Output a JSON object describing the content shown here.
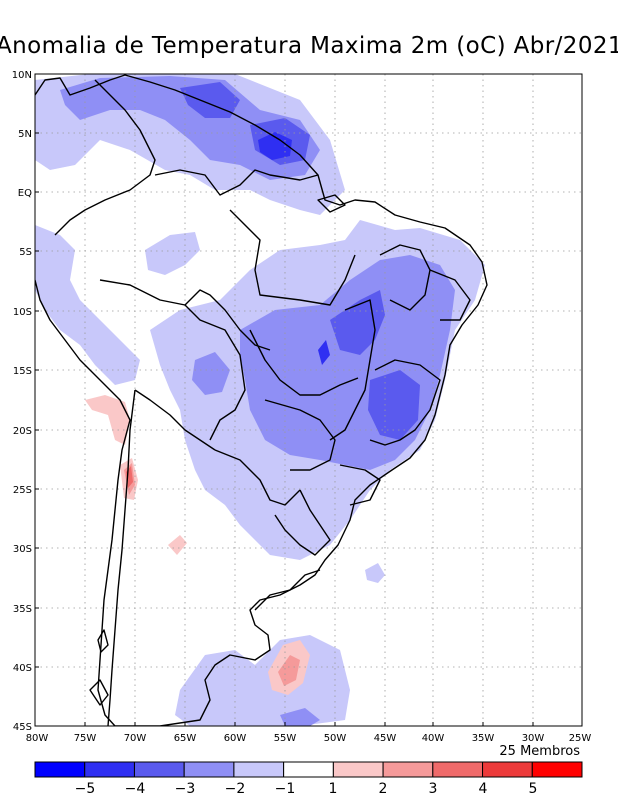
{
  "title": "Anomalia de Temperatura Maxima 2m (oC) Abr/2021",
  "members_label": "25 Membros",
  "lat_ticks": [
    "10N",
    "5N",
    "EQ",
    "5S",
    "10S",
    "15S",
    "20S",
    "25S",
    "30S",
    "35S",
    "40S",
    "45S"
  ],
  "lon_ticks": [
    "80W",
    "75W",
    "70W",
    "65W",
    "60W",
    "55W",
    "50W",
    "45W",
    "40W",
    "35W",
    "30W",
    "25W"
  ],
  "colorbar": {
    "labels": [
      "−5",
      "−4",
      "−3",
      "−2",
      "−1",
      "1",
      "2",
      "3",
      "4",
      "5"
    ],
    "colors": [
      "#0000ff",
      "#2f2ff2",
      "#5a5aee",
      "#8f8ff5",
      "#c8c8fa",
      "#ffffff",
      "#fac8c8",
      "#f59a9a",
      "#ef6a6a",
      "#ec3a3a",
      "#ff0000"
    ]
  },
  "colors": {
    "anom_m1": "#c8c8fa",
    "anom_m2": "#8f8ff5",
    "anom_m3": "#5a5aee",
    "anom_m4": "#2f2ff2",
    "anom_p1": "#fac8c8",
    "anom_p2": "#f59a9a",
    "anom_p3": "#ef6a6a"
  }
}
